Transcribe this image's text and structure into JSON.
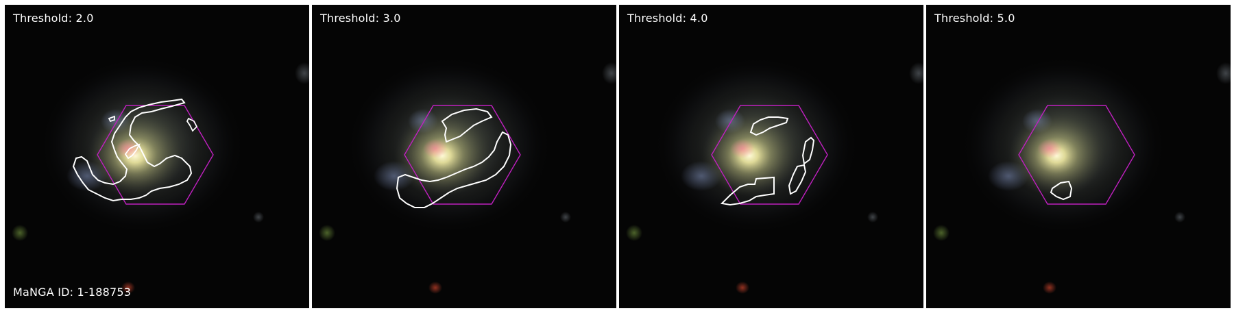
{
  "panels": [
    {
      "threshold_label": "Threshold: 2.0"
    },
    {
      "threshold_label": "Threshold: 3.0"
    },
    {
      "threshold_label": "Threshold: 4.0"
    },
    {
      "threshold_label": "Threshold: 5.0"
    }
  ],
  "galaxy": {
    "manga_id_label": "MaNGA ID: 1-188753"
  },
  "colors": {
    "background": "#050505",
    "ifu_hexagon": "#c020c0",
    "contour": "#ffffff",
    "separator": "#ffffff"
  }
}
